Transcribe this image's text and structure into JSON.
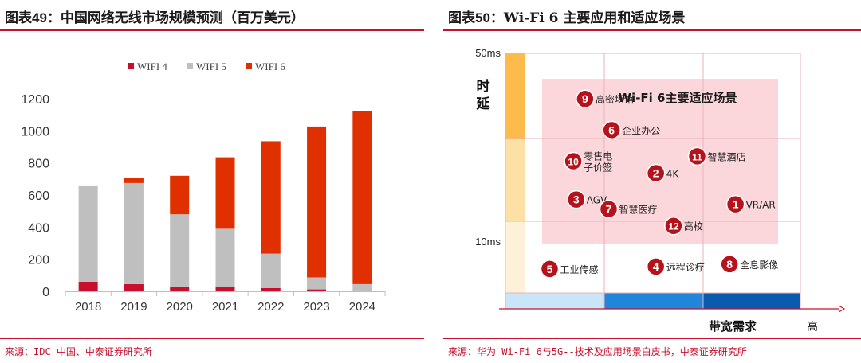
{
  "left": {
    "title_prefix": "图表",
    "title_num": "49",
    "title_text": "：中国网络无线市场规模预测（百万美元）",
    "source": "来源：IDC 中国、中泰证券研究所"
  },
  "right": {
    "title_prefix": "图表",
    "title_num": "50",
    "title_text": "：Wi-Fi 6 主要应用和适应场景",
    "source": "来源：华为 Wi-Fi 6与5G--技术及应用场景白皮书，中泰证券研究所"
  },
  "chart_data": [
    {
      "type": "bar",
      "stacked": true,
      "title": "中国网络无线市场规模预测（百万美元）",
      "categories": [
        "2018",
        "2019",
        "2020",
        "2021",
        "2022",
        "2023",
        "2024"
      ],
      "series": [
        {
          "name": "WIFI 4",
          "color": "#c8102e",
          "values": [
            60,
            45,
            30,
            25,
            20,
            12,
            5
          ]
        },
        {
          "name": "WIFI 5",
          "color": "#bfbfbf",
          "values": [
            595,
            630,
            450,
            365,
            215,
            75,
            40
          ]
        },
        {
          "name": "WIFI 6",
          "color": "#e03000",
          "values": [
            0,
            30,
            240,
            445,
            700,
            940,
            1080
          ]
        }
      ],
      "ylim": [
        0,
        1200
      ],
      "yticks": [
        "0",
        "200",
        "400",
        "600",
        "800",
        "1000",
        "1200"
      ],
      "legend": "top-center"
    },
    {
      "type": "scatter",
      "title": "Wi-Fi 6主要适应场景",
      "xlabel": "带宽需求",
      "xhigh": "高",
      "ylabel_chars": [
        "时",
        "延"
      ],
      "yticks": [
        "50ms",
        "10ms"
      ],
      "region_label": "Wi-Fi 6主要适应场景",
      "points": [
        {
          "n": "1",
          "label": "VR/AR",
          "bandwidth": 0.78,
          "latency": 0.37
        },
        {
          "n": "2",
          "label": "4K",
          "bandwidth": 0.51,
          "latency": 0.5
        },
        {
          "n": "3",
          "label": "AGV",
          "bandwidth": 0.24,
          "latency": 0.39
        },
        {
          "n": "4",
          "label": "远程诊疗",
          "bandwidth": 0.51,
          "latency": 0.11
        },
        {
          "n": "5",
          "label": "工业传感",
          "bandwidth": 0.15,
          "latency": 0.1
        },
        {
          "n": "6",
          "label": "企业办公",
          "bandwidth": 0.36,
          "latency": 0.68
        },
        {
          "n": "7",
          "label": "智慧医疗",
          "bandwidth": 0.35,
          "latency": 0.35
        },
        {
          "n": "8",
          "label": "全息影像",
          "bandwidth": 0.76,
          "latency": 0.12
        },
        {
          "n": "9",
          "label": "高密场馆",
          "bandwidth": 0.27,
          "latency": 0.81
        },
        {
          "n": "10",
          "label": "零售电|子价签",
          "bandwidth": 0.23,
          "latency": 0.55
        },
        {
          "n": "11",
          "label": "智慧酒店",
          "bandwidth": 0.65,
          "latency": 0.57
        },
        {
          "n": "12",
          "label": "高校",
          "bandwidth": 0.57,
          "latency": 0.28
        }
      ]
    }
  ]
}
